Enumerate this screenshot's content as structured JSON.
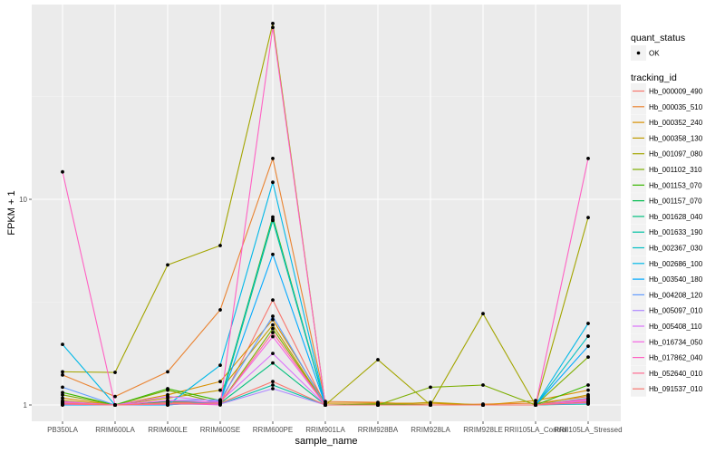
{
  "chart_data": {
    "type": "line",
    "title": "",
    "xlabel": "sample_name",
    "ylabel": "FPKM + 1",
    "yscale": "log10",
    "ylim": [
      0.8,
      88
    ],
    "y_ticks": [
      1,
      10
    ],
    "y_tick_labels": [
      "1",
      "10"
    ],
    "grid": true,
    "categories": [
      "PB350LA",
      "RRIM600LA",
      "RRIM600LE",
      "RRIM600SE",
      "RRIM600PE",
      "RRIM901LA",
      "RRIM928BA",
      "RRIM928LA",
      "RRIM928LE",
      "RRII105LA_Control",
      "RRII105LA_Stressed"
    ],
    "legend_position": "right",
    "legend_quant": {
      "title": "quant_status",
      "entries": [
        {
          "label": "OK",
          "marker": "point"
        }
      ]
    },
    "legend_title": "tracking_id",
    "series": [
      {
        "name": "Hb_000009_490",
        "color": "#F8766D",
        "values": [
          1.02,
          1.0,
          1.03,
          1.02,
          3.24,
          1.0,
          1.0,
          1.0,
          1.0,
          1.0,
          1.04
        ]
      },
      {
        "name": "Hb_000035_510",
        "color": "#EA8331",
        "values": [
          1.4,
          1.1,
          1.45,
          2.9,
          15.8,
          1.04,
          1.03,
          1.0,
          1.01,
          1.02,
          1.1
        ]
      },
      {
        "name": "Hb_000352_240",
        "color": "#D89000",
        "values": [
          1.08,
          1.0,
          1.12,
          1.3,
          2.6,
          1.02,
          1.02,
          1.02,
          1.0,
          1.05,
          1.18
        ]
      },
      {
        "name": "Hb_000358_130",
        "color": "#C09B00",
        "values": [
          1.05,
          1.0,
          1.08,
          1.18,
          2.45,
          1.0,
          1.0,
          1.03,
          1.0,
          1.0,
          1.12
        ]
      },
      {
        "name": "Hb_001097_080",
        "color": "#A3A500",
        "values": [
          1.45,
          1.44,
          4.8,
          5.96,
          71.6,
          1.0,
          1.66,
          1.0,
          2.78,
          1.0,
          8.15
        ]
      },
      {
        "name": "Hb_001102_310",
        "color": "#7CAE00",
        "values": [
          1.12,
          1.0,
          1.18,
          1.02,
          2.35,
          1.0,
          1.0,
          1.22,
          1.25,
          1.0,
          1.71
        ]
      },
      {
        "name": "Hb_001153_070",
        "color": "#39B600",
        "values": [
          1.15,
          1.0,
          1.2,
          1.05,
          8.2,
          1.0,
          1.01,
          1.0,
          1.0,
          1.0,
          1.25
        ]
      },
      {
        "name": "Hb_001157_070",
        "color": "#00BB4E",
        "values": [
          1.03,
          1.0,
          1.04,
          1.03,
          7.9,
          1.0,
          1.0,
          1.0,
          1.0,
          1.0,
          1.03
        ]
      },
      {
        "name": "Hb_001628_040",
        "color": "#00BF7D",
        "values": [
          1.02,
          1.0,
          1.02,
          1.02,
          1.6,
          1.0,
          1.0,
          1.0,
          1.0,
          1.0,
          1.02
        ]
      },
      {
        "name": "Hb_001633_190",
        "color": "#00C1A3",
        "values": [
          1.01,
          1.0,
          1.01,
          1.01,
          1.25,
          1.0,
          1.0,
          1.0,
          1.0,
          1.0,
          1.01
        ]
      },
      {
        "name": "Hb_002367_030",
        "color": "#00BFC4",
        "values": [
          1.0,
          1.0,
          1.0,
          1.05,
          8.0,
          1.0,
          1.0,
          1.0,
          1.0,
          1.0,
          2.16
        ]
      },
      {
        "name": "Hb_002686_100",
        "color": "#00B8E7",
        "values": [
          1.97,
          1.0,
          1.0,
          1.56,
          12.1,
          1.0,
          1.0,
          1.0,
          1.0,
          1.0,
          2.49
        ]
      },
      {
        "name": "Hb_003540_180",
        "color": "#00A9FF",
        "values": [
          1.0,
          1.0,
          1.0,
          1.04,
          5.4,
          1.0,
          1.0,
          1.0,
          1.0,
          1.0,
          1.93
        ]
      },
      {
        "name": "Hb_004208_120",
        "color": "#619CFF",
        "values": [
          1.22,
          1.0,
          1.05,
          1.06,
          2.7,
          1.0,
          1.0,
          1.0,
          1.0,
          1.0,
          1.08
        ]
      },
      {
        "name": "Hb_005097_010",
        "color": "#AE87FF",
        "values": [
          1.01,
          1.0,
          1.01,
          1.01,
          1.2,
          1.0,
          1.0,
          1.0,
          1.0,
          1.0,
          1.02
        ]
      },
      {
        "name": "Hb_005408_110",
        "color": "#DB72FB",
        "values": [
          1.04,
          1.0,
          1.1,
          1.04,
          1.78,
          1.0,
          1.0,
          1.0,
          1.0,
          1.0,
          1.05
        ]
      },
      {
        "name": "Hb_016734_050",
        "color": "#F564E3",
        "values": [
          1.03,
          1.0,
          1.05,
          1.03,
          2.15,
          1.0,
          1.0,
          1.0,
          1.0,
          1.0,
          1.06
        ]
      },
      {
        "name": "Hb_017862_040",
        "color": "#FF61C3",
        "values": [
          13.6,
          1.0,
          1.02,
          1.0,
          68.5,
          1.0,
          1.0,
          1.0,
          1.0,
          1.0,
          15.8
        ]
      },
      {
        "name": "Hb_052640_010",
        "color": "#FF6C91",
        "values": [
          1.01,
          1.0,
          1.01,
          1.02,
          2.25,
          1.0,
          1.0,
          1.0,
          1.0,
          1.0,
          1.07
        ]
      },
      {
        "name": "Hb_091537_010",
        "color": "#F8766D",
        "values": [
          1.02,
          1.0,
          1.02,
          1.02,
          1.3,
          1.0,
          1.0,
          1.0,
          1.0,
          1.0,
          1.03
        ]
      }
    ]
  }
}
